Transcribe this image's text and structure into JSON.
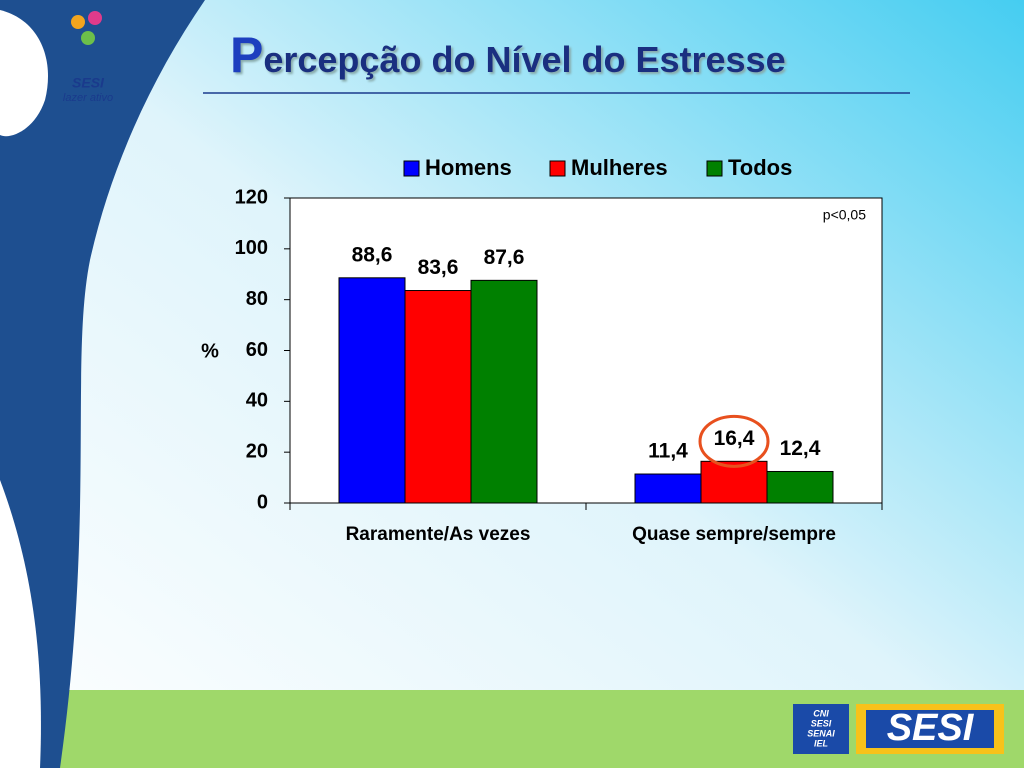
{
  "chart_data": {
    "type": "bar",
    "title": "Percepção do Nível do Estresse",
    "categories": [
      "Raramente/As vezes",
      "Quase sempre/sempre"
    ],
    "series": [
      {
        "name": "Homens",
        "color": "#0000ff",
        "values": [
          88.6,
          11.4
        ],
        "value_labels": [
          "88,6",
          "11,4"
        ]
      },
      {
        "name": "Mulheres",
        "color": "#ff0000",
        "values": [
          83.6,
          16.4
        ],
        "value_labels": [
          "83,6",
          "16,4"
        ]
      },
      {
        "name": "Todos",
        "color": "#008000",
        "values": [
          87.6,
          12.4
        ],
        "value_labels": [
          "87,6",
          "12,4"
        ]
      }
    ],
    "ylabel": "%",
    "annotation": "p<0,05",
    "ylim": [
      0,
      120
    ],
    "yticks": [
      0,
      20,
      40,
      60,
      80,
      100,
      120
    ],
    "legend": "top"
  },
  "logos": {
    "top": [
      "SESI",
      "lazer ativo"
    ],
    "bottom": {
      "stack": [
        "CNI",
        "SESI",
        "SENAI",
        "IEL"
      ],
      "brand": "SESI"
    }
  }
}
